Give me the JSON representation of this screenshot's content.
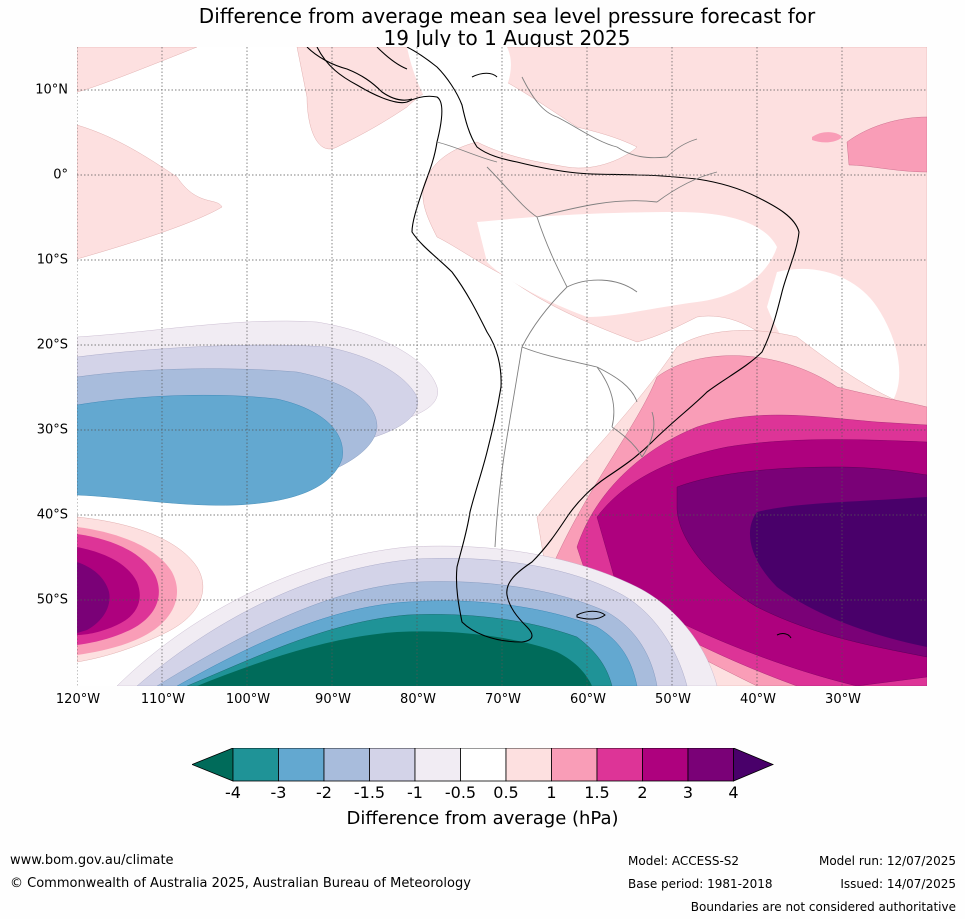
{
  "title": {
    "line1": "Difference from average mean sea level pressure forecast for",
    "line2": "19 July to 1 August 2025"
  },
  "map": {
    "lat_labels": [
      "10°N",
      "0°",
      "10°S",
      "20°S",
      "30°S",
      "40°S",
      "50°S"
    ],
    "lon_labels": [
      "120°W",
      "110°W",
      "100°W",
      "90°W",
      "80°W",
      "70°W",
      "60°W",
      "50°W",
      "40°W",
      "30°W"
    ]
  },
  "colorbar": {
    "tick_labels": [
      "-4",
      "-3",
      "-2",
      "-1.5",
      "-1",
      "-0.5",
      "0.5",
      "1",
      "1.5",
      "2",
      "3",
      "4"
    ],
    "colors": {
      "lt_-4": "#006b5a",
      "-4_-3": "#1f9397",
      "-3_-2": "#63a8d0",
      "-2_-1.5": "#a8bcdc",
      "-1.5_-1": "#d3d3e8",
      "-1_-0.5": "#f1ecf3",
      "-0.5_0.5": "#ffffff",
      "0.5_1": "#fde0e0",
      "1_1.5": "#f99db7",
      "1.5_2": "#dd3497",
      "2_3": "#ae017e",
      "3_4": "#7a0177",
      "gt_4": "#49006a"
    },
    "label": "Difference from average (hPa)"
  },
  "footer": {
    "website": "www.bom.gov.au/climate",
    "copyright": "© Commonwealth of Australia 2025, Australian Bureau of Meteorology",
    "model": "Model: ACCESS-S2",
    "base_period": "Base period: 1981-2018",
    "model_run": "Model run: 12/07/2025",
    "issued": "Issued: 14/07/2025",
    "disclaimer": "Boundaries are not considered authoritative"
  }
}
